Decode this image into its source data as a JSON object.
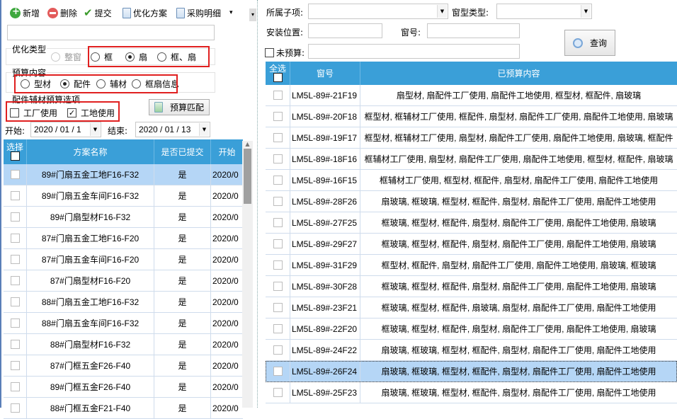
{
  "toolbar": {
    "items": [
      {
        "label": "新增",
        "icon": "add-icon"
      },
      {
        "label": "删除",
        "icon": "delete-icon"
      },
      {
        "label": "提交",
        "icon": "check-icon"
      },
      {
        "label": "优化方案",
        "icon": "report-icon"
      },
      {
        "label": "采购明细",
        "icon": "report-icon"
      }
    ],
    "more": "▾"
  },
  "left": {
    "name_value": "",
    "opt_type": {
      "label": "优化类型",
      "options": [
        {
          "label": "整窗",
          "checked": false,
          "disabled": true
        },
        {
          "label": "框",
          "checked": false
        },
        {
          "label": "扇",
          "checked": true
        },
        {
          "label": "框、扇",
          "checked": false
        }
      ]
    },
    "budget": {
      "label": "预算内容",
      "options": [
        {
          "label": "型材",
          "checked": false
        },
        {
          "label": "配件",
          "checked": true
        },
        {
          "label": "辅材",
          "checked": false
        },
        {
          "label": "框扇信息",
          "checked": false
        }
      ]
    },
    "accessory": {
      "label": "配件辅材预算选项",
      "options": [
        {
          "label": "工厂使用",
          "checked": false
        },
        {
          "label": "工地使用",
          "checked": true
        }
      ]
    },
    "match_button": "预算匹配",
    "start_label": "开始:",
    "start_value": "2020 / 01 / 1",
    "end_label": "结束:",
    "end_value": "2020 / 01 / 13",
    "grid": {
      "headers": [
        "选择",
        "方案名称",
        "是否已提交",
        "开始"
      ],
      "rows": [
        {
          "name": "89#门扇五金工地F16-F32",
          "submitted": "是",
          "start": "2020/0",
          "selected": true
        },
        {
          "name": "89#门扇五金车间F16-F32",
          "submitted": "是",
          "start": "2020/0"
        },
        {
          "name": "89#门扇型材F16-F32",
          "submitted": "是",
          "start": "2020/0"
        },
        {
          "name": "87#门扇五金工地F16-F20",
          "submitted": "是",
          "start": "2020/0"
        },
        {
          "name": "87#门扇五金车间F16-F20",
          "submitted": "是",
          "start": "2020/0"
        },
        {
          "name": "87#门扇型材F16-F20",
          "submitted": "是",
          "start": "2020/0"
        },
        {
          "name": "88#门扇五金工地F16-F32",
          "submitted": "是",
          "start": "2020/0"
        },
        {
          "name": "88#门扇五金车间F16-F32",
          "submitted": "是",
          "start": "2020/0"
        },
        {
          "name": "88#门扇型材F16-F32",
          "submitted": "是",
          "start": "2020/0"
        },
        {
          "name": "87#门框五金F26-F40",
          "submitted": "是",
          "start": "2020/0"
        },
        {
          "name": "89#门框五金F26-F40",
          "submitted": "是",
          "start": "2020/0"
        },
        {
          "name": "88#门框五金F21-F40",
          "submitted": "是",
          "start": "2020/0"
        }
      ]
    }
  },
  "right": {
    "subitem_label": "所属子项:",
    "subitem_value": "",
    "wintype_label": "窗型类型:",
    "wintype_value": "",
    "location_label": "安装位置:",
    "location_value": "",
    "winno_label": "窗号:",
    "winno_value": "",
    "unbudget_label": "未预算:",
    "unbudget_checked": false,
    "unbudget_value": "",
    "query_button": "查询",
    "grid": {
      "headers": [
        "全选",
        "窗号",
        "已预算内容"
      ],
      "rows": [
        {
          "no": "LM5L-89#-21F19",
          "content": "扇型材, 扇配件工厂使用, 扇配件工地使用, 框型材, 框配件, 扇玻璃"
        },
        {
          "no": "LM5L-89#-20F18",
          "content": "框型材, 框辅材工厂使用, 框配件, 扇型材, 扇配件工厂使用, 扇配件工地使用, 扇玻璃"
        },
        {
          "no": "LM5L-89#-19F17",
          "content": "框型材, 框辅材工厂使用, 扇型材, 扇配件工厂使用, 扇配件工地使用, 扇玻璃, 框配件"
        },
        {
          "no": "LM5L-89#-18F16",
          "content": "框辅材工厂使用, 扇型材, 扇配件工厂使用, 扇配件工地使用, 框型材, 框配件, 扇玻璃"
        },
        {
          "no": "LM5L-89#-16F15",
          "content": "框辅材工厂使用, 框型材, 框配件, 扇型材, 扇配件工厂使用, 扇配件工地使用"
        },
        {
          "no": "LM5L-89#-28F26",
          "content": "扇玻璃, 框玻璃, 框型材, 框配件, 扇型材, 扇配件工厂使用, 扇配件工地使用"
        },
        {
          "no": "LM5L-89#-27F25",
          "content": "框玻璃, 框型材, 框配件, 扇型材, 扇配件工厂使用, 扇配件工地使用, 扇玻璃"
        },
        {
          "no": "LM5L-89#-29F27",
          "content": "框玻璃, 框型材, 框配件, 扇型材, 扇配件工厂使用, 扇配件工地使用, 扇玻璃"
        },
        {
          "no": "LM5L-89#-31F29",
          "content": "框型材, 框配件, 扇型材, 扇配件工厂使用, 扇配件工地使用, 扇玻璃, 框玻璃"
        },
        {
          "no": "LM5L-89#-30F28",
          "content": "框玻璃, 框型材, 框配件, 扇型材, 扇配件工厂使用, 扇配件工地使用, 扇玻璃"
        },
        {
          "no": "LM5L-89#-23F21",
          "content": "框玻璃, 框型材, 框配件, 扇玻璃, 扇型材, 扇配件工厂使用, 扇配件工地使用"
        },
        {
          "no": "LM5L-89#-22F20",
          "content": "框玻璃, 框型材, 框配件, 扇型材, 扇配件工厂使用, 扇配件工地使用, 扇玻璃"
        },
        {
          "no": "LM5L-89#-24F22",
          "content": "扇玻璃, 框玻璃, 框型材, 框配件, 扇型材, 扇配件工厂使用, 扇配件工地使用"
        },
        {
          "no": "LM5L-89#-26F24",
          "content": "扇玻璃, 框玻璃, 框型材, 框配件, 扇型材, 扇配件工厂使用, 扇配件工地使用",
          "selected": true
        },
        {
          "no": "LM5L-89#-25F23",
          "content": "扇玻璃, 框玻璃, 框型材, 框配件, 扇型材, 扇配件工厂使用, 扇配件工地使用"
        }
      ]
    }
  },
  "colors": {
    "header": "#3a9fd8",
    "selected_row": "#b5d6f6",
    "highlight_box": "#e02020"
  }
}
